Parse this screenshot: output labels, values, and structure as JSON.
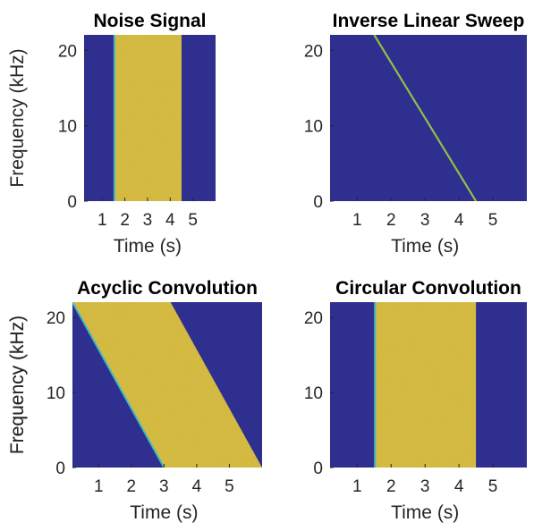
{
  "figure": {
    "colors": {
      "background": "#2e2f8e",
      "energy": "#d6b73a",
      "energy_alt": "#8fbf4a",
      "edge": "#3fb7c7"
    }
  },
  "chart_data": [
    {
      "type": "heatmap",
      "title": "Noise Signal",
      "xlabel": "Time (s)",
      "ylabel": "Frequency (kHz)",
      "xlim": [
        0.2,
        6.0
      ],
      "ylim": [
        0,
        22.05
      ],
      "xticks": [
        1,
        2,
        3,
        4,
        5
      ],
      "yticks": [
        0,
        10,
        20
      ],
      "regions": [
        {
          "shape": "band",
          "t_start": 1.5,
          "t_end": 4.5,
          "f_low": 0,
          "f_high": 22.05
        }
      ]
    },
    {
      "type": "heatmap",
      "title": "Inverse Linear Sweep",
      "xlabel": "Time (s)",
      "ylabel": "",
      "xlim": [
        0.2,
        6.0
      ],
      "ylim": [
        0,
        22.05
      ],
      "xticks": [
        1,
        2,
        3,
        4,
        5
      ],
      "yticks": [
        0,
        10,
        20
      ],
      "regions": [
        {
          "shape": "line",
          "t_start": 1.5,
          "t_end": 4.5,
          "f_start": 22.05,
          "f_end": 0
        }
      ]
    },
    {
      "type": "heatmap",
      "title": "Acyclic Convolution",
      "xlabel": "Time (s)",
      "ylabel": "Frequency (kHz)",
      "xlim": [
        0.2,
        6.0
      ],
      "ylim": [
        0,
        22.05
      ],
      "xticks": [
        1,
        2,
        3,
        4,
        5
      ],
      "yticks": [
        0,
        10,
        20
      ],
      "regions": [
        {
          "shape": "parallelogram",
          "t_start_top": 0.2,
          "t_end_top": 3.2,
          "t_start_bottom": 3.0,
          "t_end_bottom": 6.0,
          "f_low": 0,
          "f_high": 22.05
        }
      ]
    },
    {
      "type": "heatmap",
      "title": "Circular Convolution",
      "xlabel": "Time (s)",
      "ylabel": "Frequency (kHz)",
      "xlim": [
        0.2,
        6.0
      ],
      "ylim": [
        0,
        22.05
      ],
      "xticks": [
        1,
        2,
        3,
        4,
        5
      ],
      "yticks": [
        0,
        10,
        20
      ],
      "regions": [
        {
          "shape": "band",
          "t_start": 1.5,
          "t_end": 4.5,
          "f_low": 0,
          "f_high": 22.05
        }
      ]
    }
  ]
}
